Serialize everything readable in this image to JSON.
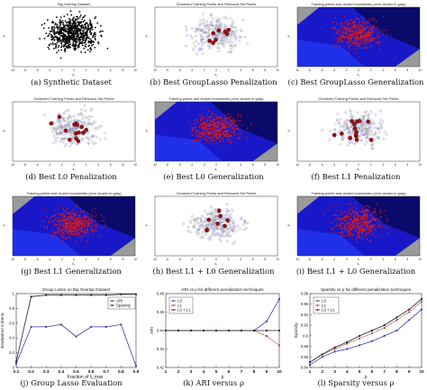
{
  "panels": [
    {
      "id": "a",
      "title": "Big Overlap Dataset",
      "caption": "(a) Synthetic Dataset",
      "kind": "scatter-black"
    },
    {
      "id": "b",
      "title": "Clustered Training Points and Reduced Set Points",
      "caption": "(b) Best GroupLasso Penalization",
      "kind": "reduced"
    },
    {
      "id": "c",
      "title": "Training points and cluster boundaries (zero cluster in gray)",
      "caption": "(c) Best GroupLasso Generalization",
      "kind": "boundary"
    },
    {
      "id": "d",
      "title": "Clustered Training Points and Reduced Set Points",
      "caption": "(d) Best L0 Penalization",
      "kind": "reduced"
    },
    {
      "id": "e",
      "title": "Training points and cluster boundaries (zero cluster in gray)",
      "caption": "(e) Best L0 Generalization",
      "kind": "boundary"
    },
    {
      "id": "f",
      "title": "Clustered Training Points and Reduced Set Points",
      "caption": "(f) Best L1 Penalization",
      "kind": "reduced"
    },
    {
      "id": "g",
      "title": "Training points and cluster boundaries (zero cluster in gray)",
      "caption": "(g) Best L1 Generalization",
      "kind": "boundary"
    },
    {
      "id": "h",
      "title": "Clustered Training Points and Reduced Set Points",
      "caption": "(h) Best L1 + L0 Generalization",
      "kind": "reduced"
    },
    {
      "id": "i",
      "title": "Training points and cluster boundaries (zero cluster in gray)",
      "caption": "(i) Best L1 + L0 Generalization",
      "kind": "boundary"
    }
  ],
  "captions_bottom": {
    "j": "(j) Group Lasso Evaluation",
    "k": "(k) ARI versus ρ",
    "l": "(l) Sparsity versus ρ"
  },
  "chart_data": [
    {
      "type": "line",
      "title": "Group Lasso on Big Overlap Dataset",
      "xlabel": "Fraction of λ_max",
      "ylabel": "Evaluation Criteria",
      "x": [
        0.1,
        0.2,
        0.3,
        0.4,
        0.5,
        0.6,
        0.7,
        0.8,
        0.9
      ],
      "xlim": [
        0.1,
        0.9
      ],
      "ylim": [
        0,
        1
      ],
      "xticks": [
        "0.1",
        "0.2",
        "0.3",
        "0.4",
        "0.5",
        "0.6",
        "0.7",
        "0.8",
        "0.9"
      ],
      "yticks": [
        "0",
        "0.2",
        "0.4",
        "0.6",
        "0.8",
        "1"
      ],
      "series": [
        {
          "name": "ARI",
          "color": "#3a3aa8",
          "values": [
            0.05,
            0.55,
            0.55,
            0.58,
            0.42,
            0.55,
            0.55,
            0.58,
            0.02
          ]
        },
        {
          "name": "Sparsity",
          "color": "#222222",
          "values": [
            0.08,
            0.96,
            0.98,
            0.98,
            0.98,
            0.98,
            0.98,
            0.99,
            0.99
          ]
        }
      ],
      "legend": "top-right"
    },
    {
      "type": "line",
      "title": "ARI vs ρ for different penalization techniques",
      "xlabel": "ρ",
      "ylabel": "ARI",
      "x": [
        1,
        2,
        3,
        4,
        5,
        6,
        7,
        8,
        9,
        10
      ],
      "xlim": [
        1,
        10
      ],
      "ylim": [
        0.42,
        0.46
      ],
      "xticks": [
        "1",
        "2",
        "3",
        "4",
        "5",
        "6",
        "7",
        "8",
        "9",
        "10"
      ],
      "yticks": [
        "0.42",
        "0.43",
        "0.44",
        "0.45",
        "0.46"
      ],
      "series": [
        {
          "name": "L0",
          "color": "#3a3ab0",
          "values": [
            0.44,
            0.44,
            0.44,
            0.44,
            0.44,
            0.44,
            0.44,
            0.44,
            0.445,
            0.457
          ]
        },
        {
          "name": "L1",
          "color": "#b03a3a",
          "values": [
            0.44,
            0.44,
            0.44,
            0.44,
            0.44,
            0.44,
            0.44,
            0.44,
            0.437,
            0.432
          ]
        },
        {
          "name": "L0 + L1",
          "color": "#222222",
          "values": [
            0.44,
            0.44,
            0.44,
            0.44,
            0.44,
            0.44,
            0.44,
            0.44,
            0.44,
            0.44
          ]
        }
      ],
      "legend": "top-left"
    },
    {
      "type": "line",
      "title": "Sparsity vs ρ for different penalization techniques",
      "xlabel": "ρ",
      "ylabel": "Sparsity",
      "x": [
        1,
        2,
        3,
        4,
        5,
        6,
        7,
        8,
        9,
        10
      ],
      "xlim": [
        1,
        10
      ],
      "ylim": [
        0.84,
        0.98
      ],
      "xticks": [
        "1",
        "2",
        "3",
        "4",
        "5",
        "6",
        "7",
        "8",
        "9",
        "10"
      ],
      "yticks": [
        "0.84",
        "0.86",
        "0.88",
        "0.9",
        "0.92",
        "0.94",
        "0.96",
        "0.98"
      ],
      "series": [
        {
          "name": "L0",
          "color": "#3a3ab0",
          "values": [
            0.845,
            0.86,
            0.87,
            0.875,
            0.882,
            0.89,
            0.9,
            0.91,
            0.93,
            0.95
          ]
        },
        {
          "name": "L1",
          "color": "#b03a3a",
          "values": [
            0.85,
            0.865,
            0.875,
            0.885,
            0.895,
            0.905,
            0.915,
            0.93,
            0.945,
            0.965
          ]
        },
        {
          "name": "L0 + L1",
          "color": "#222222",
          "values": [
            0.85,
            0.865,
            0.878,
            0.888,
            0.9,
            0.91,
            0.92,
            0.935,
            0.95,
            0.97
          ]
        }
      ],
      "legend": "top-left"
    }
  ]
}
